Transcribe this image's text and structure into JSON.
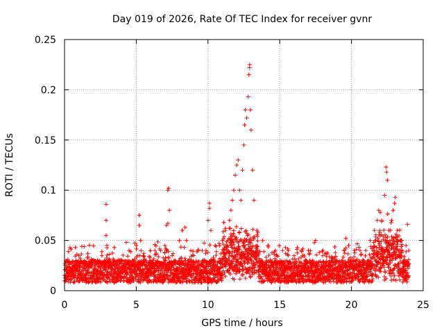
{
  "chart_data": {
    "type": "scatter",
    "title": "Day 019 of 2026, Rate Of TEC Index for receiver gvnr",
    "xlabel": "GPS time / hours",
    "ylabel": "ROTI / TECUs",
    "xlim": [
      0,
      25
    ],
    "ylim": [
      0,
      0.25
    ],
    "x_ticks": [
      "0",
      "5",
      "10",
      "15",
      "20",
      "25"
    ],
    "y_ticks": [
      "0",
      "0.05",
      "0.1",
      "0.15",
      "0.2",
      "0.25"
    ],
    "grid": true,
    "marker": "plus",
    "series_color": "#ff0000",
    "background_noise": {
      "x_range": [
        0,
        24
      ],
      "typical_y": [
        0.008,
        0.03
      ]
    },
    "series": [
      {
        "values": [
          [
            0.2,
            0.015
          ],
          [
            0.5,
            0.02
          ],
          [
            0.8,
            0.03
          ],
          [
            1.0,
            0.035
          ],
          [
            1.2,
            0.044
          ],
          [
            1.5,
            0.025
          ],
          [
            2.0,
            0.03
          ],
          [
            2.3,
            0.03
          ],
          [
            2.6,
            0.035
          ],
          [
            2.9,
            0.086
          ],
          [
            2.9,
            0.07
          ],
          [
            2.9,
            0.055
          ],
          [
            2.95,
            0.045
          ],
          [
            3.5,
            0.03
          ],
          [
            4.0,
            0.03
          ],
          [
            4.3,
            0.048
          ],
          [
            4.5,
            0.04
          ],
          [
            5.0,
            0.045
          ],
          [
            5.2,
            0.075
          ],
          [
            5.2,
            0.065
          ],
          [
            5.3,
            0.05
          ],
          [
            5.5,
            0.035
          ],
          [
            6.0,
            0.03
          ],
          [
            6.3,
            0.04
          ],
          [
            6.7,
            0.04
          ],
          [
            7.0,
            0.045
          ],
          [
            7.1,
            0.065
          ],
          [
            7.2,
            0.067
          ],
          [
            7.2,
            0.1
          ],
          [
            7.25,
            0.102
          ],
          [
            7.3,
            0.08
          ],
          [
            7.5,
            0.035
          ],
          [
            8.0,
            0.05
          ],
          [
            8.2,
            0.06
          ],
          [
            8.4,
            0.063
          ],
          [
            8.5,
            0.05
          ],
          [
            8.8,
            0.04
          ],
          [
            9.0,
            0.035
          ],
          [
            9.3,
            0.04
          ],
          [
            9.6,
            0.04
          ],
          [
            10.0,
            0.07
          ],
          [
            10.1,
            0.087
          ],
          [
            10.1,
            0.082
          ],
          [
            10.2,
            0.06
          ],
          [
            10.5,
            0.045
          ],
          [
            10.8,
            0.045
          ],
          [
            11.0,
            0.05
          ],
          [
            11.2,
            0.06
          ],
          [
            11.5,
            0.07
          ],
          [
            11.6,
            0.08
          ],
          [
            11.7,
            0.09
          ],
          [
            11.8,
            0.1
          ],
          [
            11.9,
            0.115
          ],
          [
            12.0,
            0.125
          ],
          [
            12.1,
            0.13
          ],
          [
            12.2,
            0.1
          ],
          [
            12.3,
            0.09
          ],
          [
            12.4,
            0.12
          ],
          [
            12.5,
            0.145
          ],
          [
            12.55,
            0.165
          ],
          [
            12.6,
            0.18
          ],
          [
            12.7,
            0.172
          ],
          [
            12.8,
            0.193
          ],
          [
            12.85,
            0.215
          ],
          [
            12.9,
            0.222
          ],
          [
            12.9,
            0.225
          ],
          [
            12.95,
            0.18
          ],
          [
            13.0,
            0.16
          ],
          [
            13.1,
            0.12
          ],
          [
            13.2,
            0.09
          ],
          [
            13.4,
            0.06
          ],
          [
            13.8,
            0.05
          ],
          [
            14.2,
            0.045
          ],
          [
            14.7,
            0.04
          ],
          [
            15.2,
            0.04
          ],
          [
            15.6,
            0.04
          ],
          [
            16.0,
            0.035
          ],
          [
            16.5,
            0.04
          ],
          [
            17.0,
            0.04
          ],
          [
            17.5,
            0.05
          ],
          [
            18.0,
            0.035
          ],
          [
            18.5,
            0.03
          ],
          [
            19.0,
            0.03
          ],
          [
            19.5,
            0.04
          ],
          [
            19.6,
            0.052
          ],
          [
            19.8,
            0.045
          ],
          [
            20.2,
            0.04
          ],
          [
            20.6,
            0.04
          ],
          [
            21.0,
            0.04
          ],
          [
            21.3,
            0.05
          ],
          [
            21.6,
            0.06
          ],
          [
            21.8,
            0.07
          ],
          [
            21.9,
            0.08
          ],
          [
            22.0,
            0.078
          ],
          [
            22.1,
            0.07
          ],
          [
            22.3,
            0.095
          ],
          [
            22.4,
            0.123
          ],
          [
            22.45,
            0.118
          ],
          [
            22.5,
            0.11
          ],
          [
            22.6,
            0.06
          ],
          [
            22.8,
            0.07
          ],
          [
            22.9,
            0.08
          ],
          [
            23.0,
            0.087
          ],
          [
            23.05,
            0.093
          ],
          [
            23.2,
            0.06
          ],
          [
            23.5,
            0.05
          ],
          [
            23.8,
            0.045
          ],
          [
            23.9,
            0.066
          ],
          [
            24.0,
            0.04
          ]
        ]
      }
    ]
  }
}
